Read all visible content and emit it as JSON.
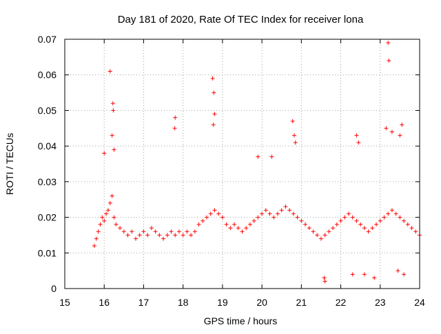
{
  "chart_data": {
    "type": "scatter",
    "title": "Day 181 of 2020, Rate Of TEC Index for receiver lona",
    "xlabel": "GPS time / hours",
    "ylabel": "ROTI / TECUs",
    "xlim": [
      15,
      24
    ],
    "ylim": [
      0,
      0.07
    ],
    "x_ticks": [
      "15",
      "16",
      "17",
      "18",
      "19",
      "20",
      "21",
      "22",
      "23",
      "24"
    ],
    "y_ticks": [
      "0",
      "0.01",
      "0.02",
      "0.03",
      "0.04",
      "0.05",
      "0.06",
      "0.07"
    ],
    "grid": true,
    "legend": "none",
    "marker": "plus",
    "color": "#ff0000",
    "series": [
      {
        "x": [
          15.75,
          15.8,
          15.85,
          15.9,
          15.95,
          16.0,
          16.05,
          16.1,
          16.15,
          16.2,
          16.25,
          16.3,
          16.4,
          16.5,
          16.6,
          16.7,
          16.8,
          16.9,
          17.0,
          17.1,
          17.2,
          17.3,
          17.4,
          17.5,
          17.6,
          17.7,
          17.8,
          17.9,
          18.0,
          18.1,
          18.2,
          18.3,
          18.4,
          18.5,
          18.6,
          18.7,
          18.8,
          18.9,
          19.0,
          19.1,
          19.2,
          19.3,
          19.4,
          19.5,
          19.6,
          19.7,
          19.8,
          19.9,
          20.0,
          20.1,
          20.2,
          20.3,
          20.4,
          20.5,
          20.6,
          20.7,
          20.8,
          20.9,
          21.0,
          21.1,
          21.2,
          21.3,
          21.4,
          21.5,
          21.6,
          21.7,
          21.8,
          21.9,
          22.0,
          22.1,
          22.2,
          22.3,
          22.4,
          22.5,
          22.6,
          22.7,
          22.8,
          22.9,
          23.0,
          23.1,
          23.2,
          23.3,
          23.4,
          23.5,
          23.6,
          23.7,
          23.8,
          23.9,
          24.0
        ],
        "y": [
          0.012,
          0.014,
          0.016,
          0.018,
          0.02,
          0.019,
          0.021,
          0.022,
          0.024,
          0.026,
          0.02,
          0.018,
          0.017,
          0.016,
          0.015,
          0.016,
          0.014,
          0.015,
          0.016,
          0.015,
          0.017,
          0.016,
          0.015,
          0.014,
          0.015,
          0.016,
          0.015,
          0.016,
          0.015,
          0.016,
          0.015,
          0.016,
          0.018,
          0.019,
          0.02,
          0.021,
          0.022,
          0.021,
          0.02,
          0.018,
          0.017,
          0.018,
          0.017,
          0.016,
          0.017,
          0.018,
          0.019,
          0.02,
          0.021,
          0.022,
          0.021,
          0.02,
          0.021,
          0.022,
          0.023,
          0.022,
          0.021,
          0.02,
          0.019,
          0.018,
          0.017,
          0.016,
          0.015,
          0.014,
          0.015,
          0.016,
          0.017,
          0.018,
          0.019,
          0.02,
          0.021,
          0.02,
          0.019,
          0.018,
          0.017,
          0.016,
          0.017,
          0.018,
          0.019,
          0.02,
          0.021,
          0.022,
          0.021,
          0.02,
          0.019,
          0.018,
          0.017,
          0.016,
          0.015
        ]
      },
      {
        "x": [
          16.15,
          16.22,
          16.23,
          16.2,
          16.25,
          17.8,
          17.79,
          18.75,
          18.78,
          18.8,
          18.77,
          20.78,
          20.82,
          20.85,
          23.2,
          23.22,
          23.3,
          23.5,
          23.55,
          22.4,
          22.45,
          23.15,
          16.0,
          19.9,
          20.25
        ],
        "y": [
          0.061,
          0.052,
          0.05,
          0.043,
          0.039,
          0.048,
          0.045,
          0.059,
          0.055,
          0.049,
          0.046,
          0.047,
          0.043,
          0.041,
          0.069,
          0.064,
          0.044,
          0.043,
          0.046,
          0.043,
          0.041,
          0.045,
          0.038,
          0.037,
          0.037
        ]
      },
      {
        "x": [
          21.6,
          21.58,
          22.3,
          22.6,
          22.85,
          23.45,
          23.6
        ],
        "y": [
          0.002,
          0.003,
          0.004,
          0.004,
          0.003,
          0.005,
          0.004
        ]
      }
    ]
  }
}
